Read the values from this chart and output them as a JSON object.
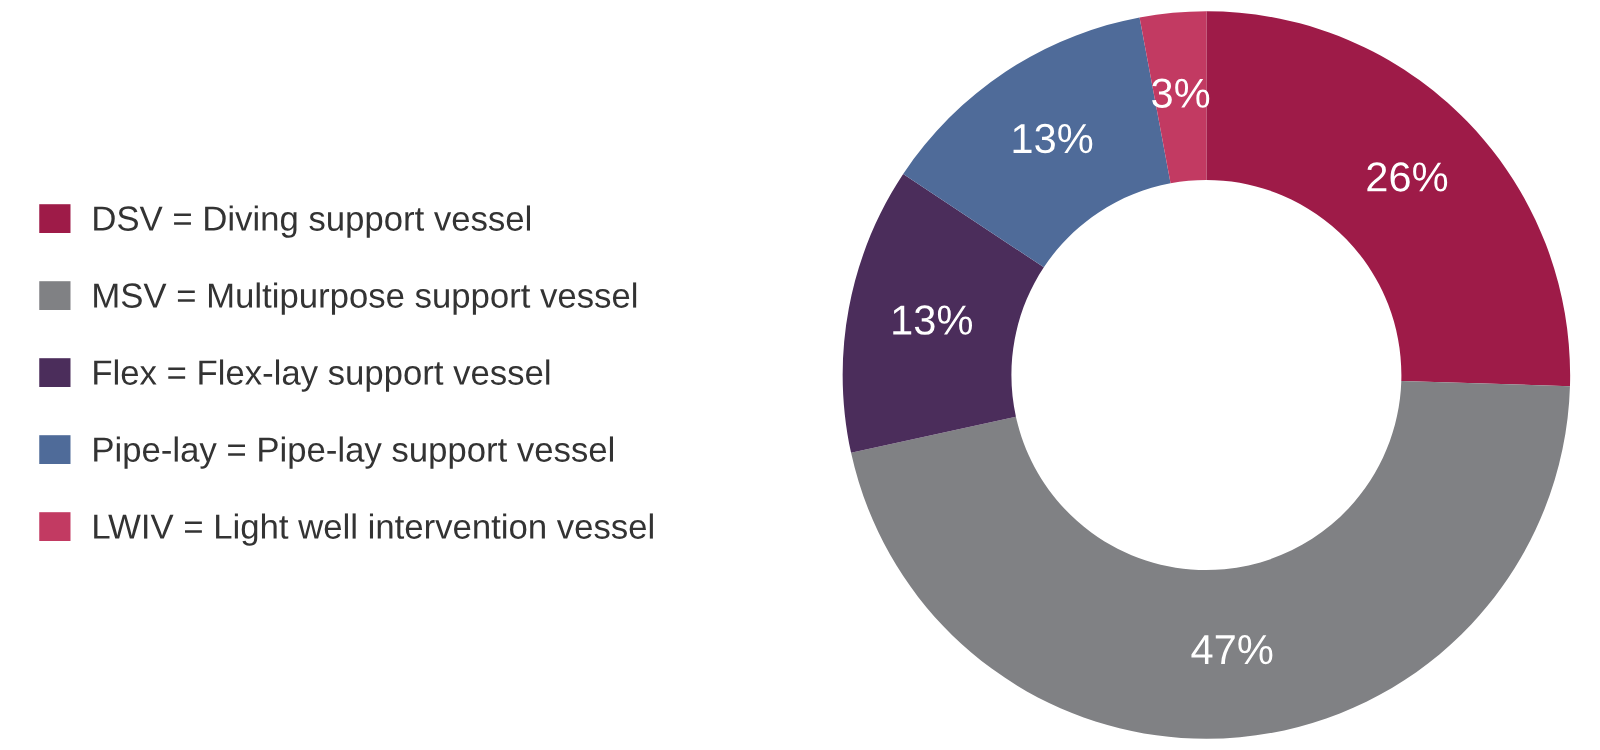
{
  "chart_data": {
    "type": "donut",
    "categories": [
      "DSV = Diving support vessel",
      "MSV = Multipurpose support vessel",
      "Flex = Flex-lay support vessel",
      "Pipe-lay = Pipe-lay support vessel",
      "LWIV = Light well intervention vessel"
    ],
    "values": [
      26,
      47,
      13,
      13,
      3
    ],
    "value_labels": [
      "26%",
      "47%",
      "13%",
      "13%",
      "3%"
    ],
    "colors": [
      "#9e1b48",
      "#808184",
      "#4b2d5b",
      "#4f6b99",
      "#c23a62"
    ],
    "legend": "left"
  }
}
